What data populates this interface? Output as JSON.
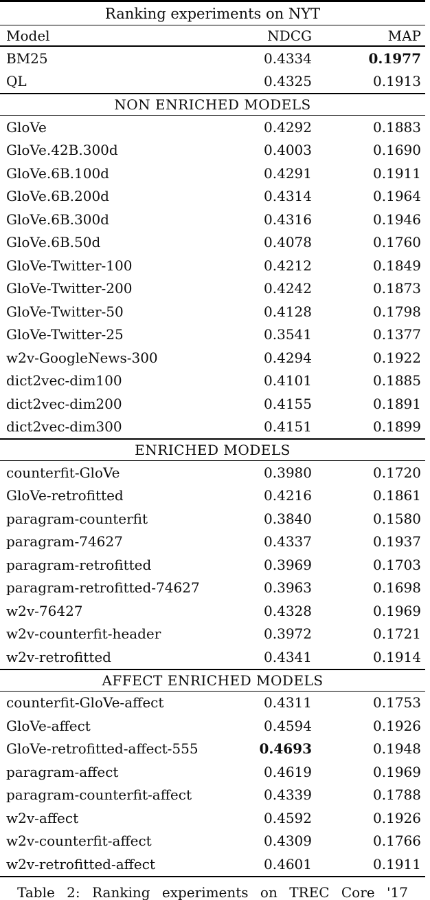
{
  "colors": {
    "background": "#ffffff",
    "text": "#0d0d0d",
    "rule": "#000000"
  },
  "table": {
    "title": "Ranking experiments on NYT",
    "columns": [
      "Model",
      "NDCG",
      "MAP"
    ],
    "sections": [
      {
        "heading": null,
        "rows": [
          {
            "model": "BM25",
            "ndcg": "0.4334",
            "map": "0.1977",
            "bold": "map"
          },
          {
            "model": "QL",
            "ndcg": "0.4325",
            "map": "0.1913",
            "bold": null
          }
        ]
      },
      {
        "heading": "NON ENRICHED MODELS",
        "rows": [
          {
            "model": "GloVe",
            "ndcg": "0.4292",
            "map": "0.1883",
            "bold": null
          },
          {
            "model": "GloVe.42B.300d",
            "ndcg": "0.4003",
            "map": "0.1690",
            "bold": null
          },
          {
            "model": "GloVe.6B.100d",
            "ndcg": "0.4291",
            "map": "0.1911",
            "bold": null
          },
          {
            "model": "GloVe.6B.200d",
            "ndcg": "0.4314",
            "map": "0.1964",
            "bold": null
          },
          {
            "model": "GloVe.6B.300d",
            "ndcg": "0.4316",
            "map": "0.1946",
            "bold": null
          },
          {
            "model": "GloVe.6B.50d",
            "ndcg": "0.4078",
            "map": "0.1760",
            "bold": null
          },
          {
            "model": "GloVe-Twitter-100",
            "ndcg": "0.4212",
            "map": "0.1849",
            "bold": null
          },
          {
            "model": "GloVe-Twitter-200",
            "ndcg": "0.4242",
            "map": "0.1873",
            "bold": null
          },
          {
            "model": "GloVe-Twitter-50",
            "ndcg": "0.4128",
            "map": "0.1798",
            "bold": null
          },
          {
            "model": "GloVe-Twitter-25",
            "ndcg": "0.3541",
            "map": "0.1377",
            "bold": null
          },
          {
            "model": "w2v-GoogleNews-300",
            "ndcg": "0.4294",
            "map": "0.1922",
            "bold": null
          },
          {
            "model": "dict2vec-dim100",
            "ndcg": "0.4101",
            "map": "0.1885",
            "bold": null
          },
          {
            "model": "dict2vec-dim200",
            "ndcg": "0.4155",
            "map": "0.1891",
            "bold": null
          },
          {
            "model": "dict2vec-dim300",
            "ndcg": "0.4151",
            "map": "0.1899",
            "bold": null
          }
        ]
      },
      {
        "heading": "ENRICHED MODELS",
        "rows": [
          {
            "model": "counterfit-GloVe",
            "ndcg": "0.3980",
            "map": "0.1720",
            "bold": null
          },
          {
            "model": "GloVe-retrofitted",
            "ndcg": "0.4216",
            "map": "0.1861",
            "bold": null
          },
          {
            "model": "paragram-counterfit",
            "ndcg": "0.3840",
            "map": "0.1580",
            "bold": null
          },
          {
            "model": "paragram-74627",
            "ndcg": "0.4337",
            "map": "0.1937",
            "bold": null
          },
          {
            "model": "paragram-retrofitted",
            "ndcg": "0.3969",
            "map": "0.1703",
            "bold": null
          },
          {
            "model": "paragram-retrofitted-74627",
            "ndcg": "0.3963",
            "map": "0.1698",
            "bold": null
          },
          {
            "model": "w2v-76427",
            "ndcg": "0.4328",
            "map": "0.1969",
            "bold": null
          },
          {
            "model": "w2v-counterfit-header",
            "ndcg": "0.3972",
            "map": "0.1721",
            "bold": null
          },
          {
            "model": "w2v-retrofitted",
            "ndcg": "0.4341",
            "map": "0.1914",
            "bold": null
          }
        ]
      },
      {
        "heading": "AFFECT ENRICHED MODELS",
        "rows": [
          {
            "model": "counterfit-GloVe-affect",
            "ndcg": "0.4311",
            "map": "0.1753",
            "bold": null
          },
          {
            "model": "GloVe-affect",
            "ndcg": "0.4594",
            "map": "0.1926",
            "bold": null
          },
          {
            "model": "GloVe-retrofitted-affect-555",
            "ndcg": "0.4693",
            "map": "0.1948",
            "bold": "ndcg"
          },
          {
            "model": "paragram-affect",
            "ndcg": "0.4619",
            "map": "0.1969",
            "bold": null
          },
          {
            "model": "paragram-counterfit-affect",
            "ndcg": "0.4339",
            "map": "0.1788",
            "bold": null
          },
          {
            "model": "w2v-affect",
            "ndcg": "0.4592",
            "map": "0.1926",
            "bold": null
          },
          {
            "model": "w2v-counterfit-affect",
            "ndcg": "0.4309",
            "map": "0.1766",
            "bold": null
          },
          {
            "model": "w2v-retrofitted-affect",
            "ndcg": "0.4601",
            "map": "0.1911",
            "bold": null
          }
        ]
      }
    ]
  },
  "caption": "Table 2: Ranking experiments on TREC Core '17"
}
